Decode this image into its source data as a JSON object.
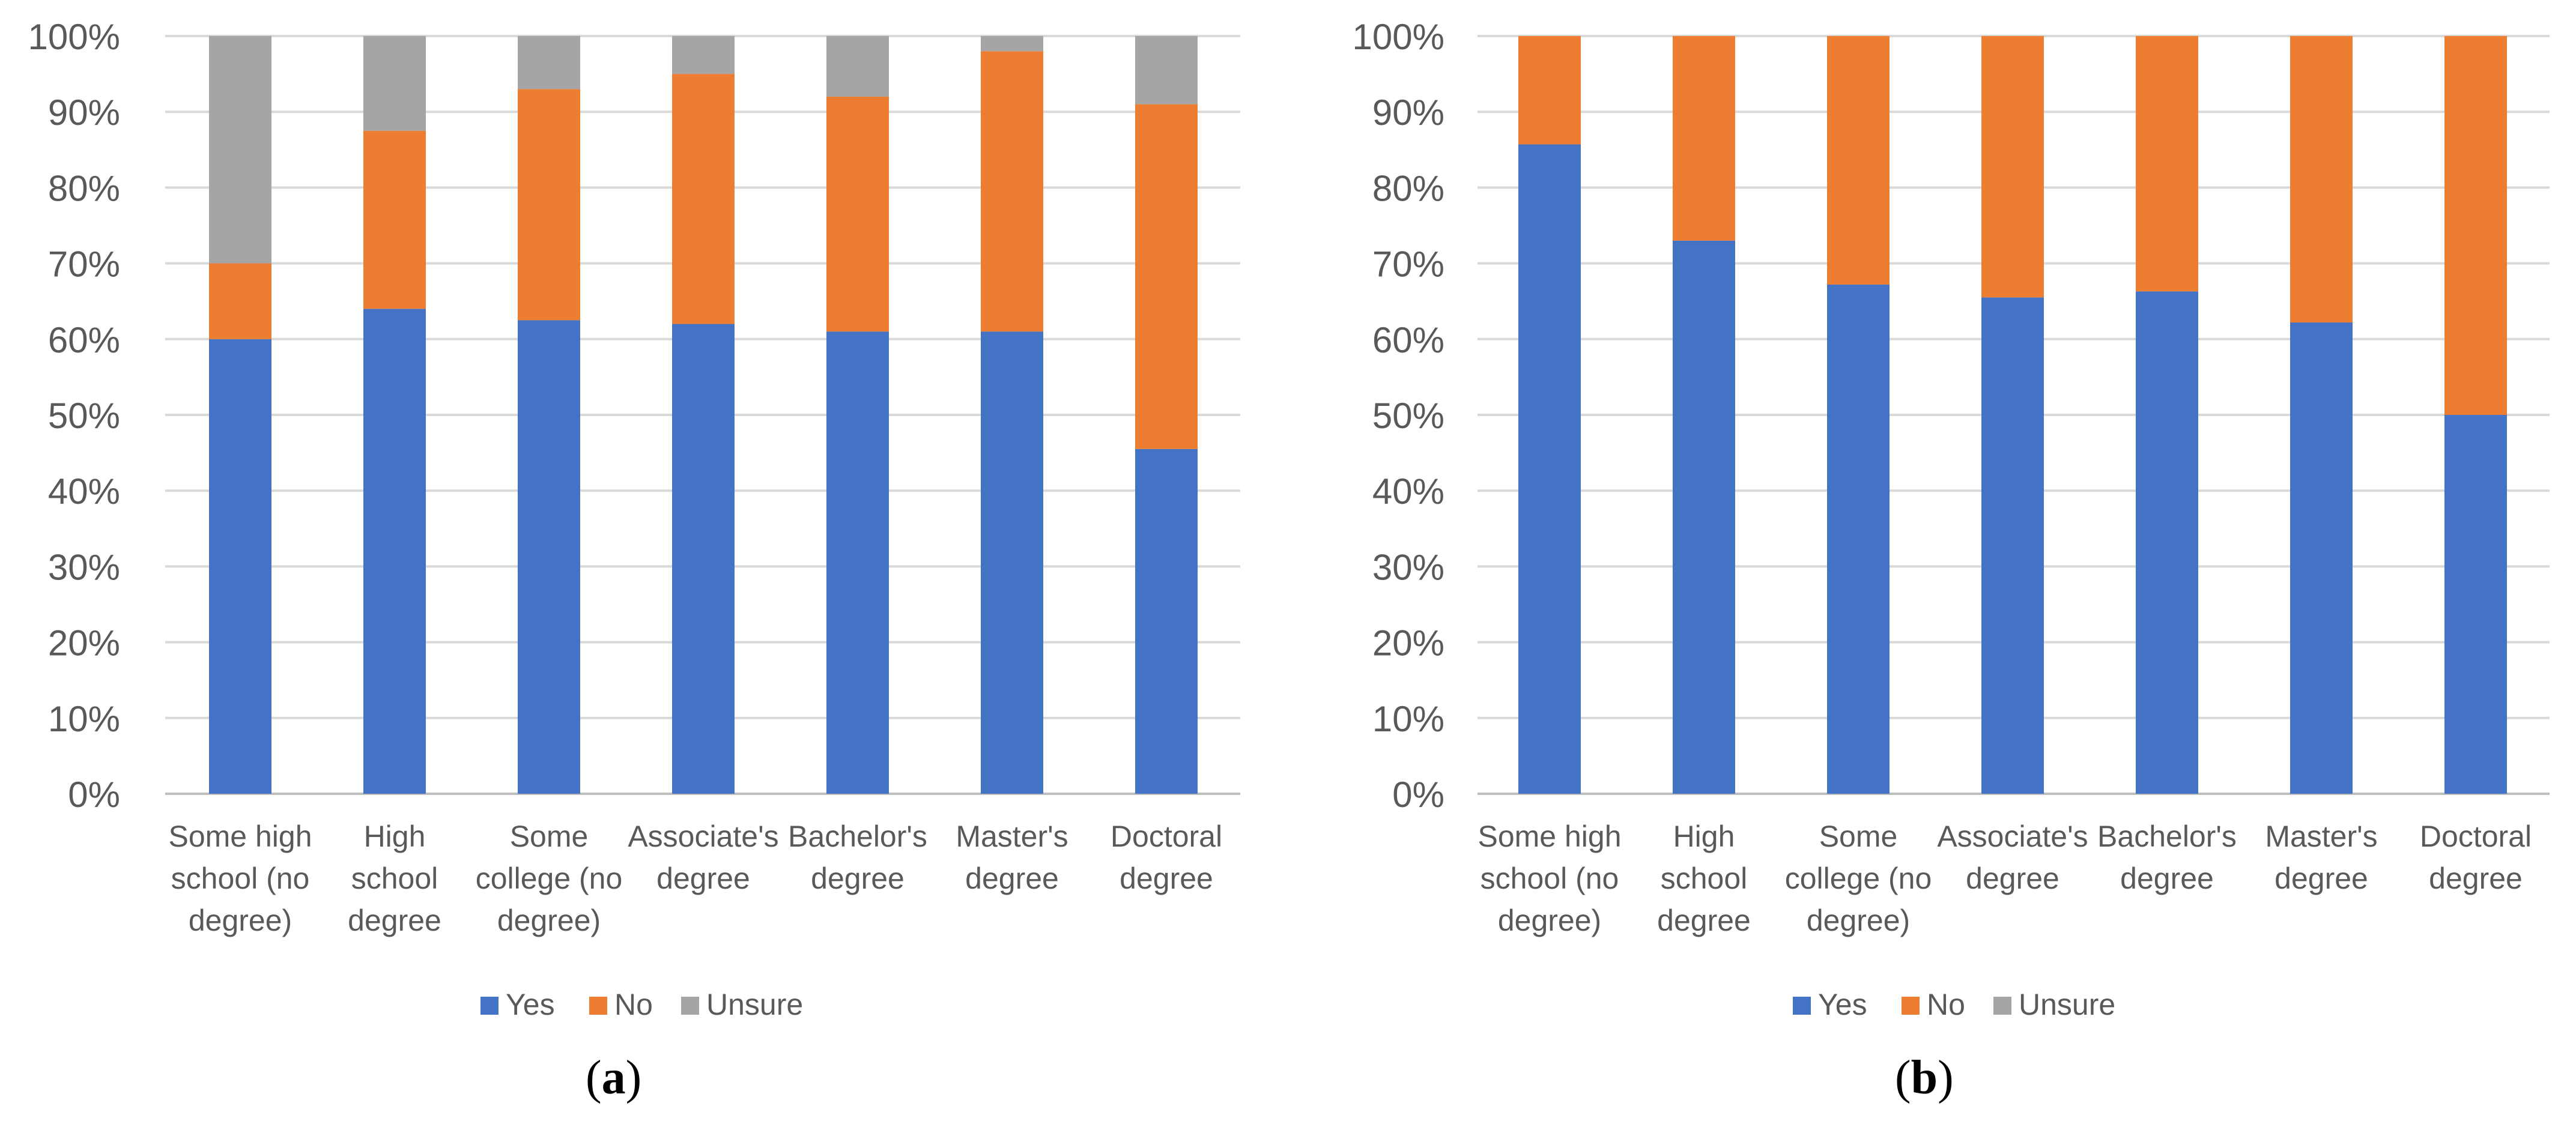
{
  "chart_data": [
    {
      "type": "bar",
      "stacked": true,
      "panel_label": "a",
      "categories": [
        "Some high school (no degree)",
        "High school degree",
        "Some college (no degree)",
        "Associate's degree",
        "Bachelor's degree",
        "Master's degree",
        "Doctoral degree"
      ],
      "category_lines": [
        [
          "Some high",
          "school (no",
          "degree)"
        ],
        [
          "High",
          "school",
          "degree"
        ],
        [
          "Some",
          "college (no",
          "degree)"
        ],
        [
          "Associate's",
          "degree"
        ],
        [
          "Bachelor's",
          "degree"
        ],
        [
          "Master's",
          "degree"
        ],
        [
          "Doctoral",
          "degree"
        ]
      ],
      "series": [
        {
          "name": "Yes",
          "color": "#4472C4",
          "values": [
            60,
            64,
            62.5,
            62,
            61,
            61,
            45.5
          ]
        },
        {
          "name": "No",
          "color": "#ED7D31",
          "values": [
            10,
            23.5,
            30.5,
            33,
            31,
            37,
            45.5
          ]
        },
        {
          "name": "Unsure",
          "color": "#A5A5A5",
          "values": [
            30,
            12.5,
            7,
            5,
            8,
            2,
            9
          ]
        }
      ],
      "ylim": [
        0,
        100
      ],
      "yticks": [
        "0%",
        "10%",
        "20%",
        "30%",
        "40%",
        "50%",
        "60%",
        "70%",
        "80%",
        "90%",
        "100%"
      ],
      "legend": "bottom",
      "grid": true
    },
    {
      "type": "bar",
      "stacked": true,
      "panel_label": "b",
      "categories": [
        "Some high school (no degree)",
        "High school degree",
        "Some college (no degree)",
        "Associate's degree",
        "Bachelor's degree",
        "Master's degree",
        "Doctoral degree"
      ],
      "category_lines": [
        [
          "Some high",
          "school (no",
          "degree)"
        ],
        [
          "High",
          "school",
          "degree"
        ],
        [
          "Some",
          "college (no",
          "degree)"
        ],
        [
          "Associate's",
          "degree"
        ],
        [
          "Bachelor's",
          "degree"
        ],
        [
          "Master's",
          "degree"
        ],
        [
          "Doctoral",
          "degree"
        ]
      ],
      "series": [
        {
          "name": "Yes",
          "color": "#4472C4",
          "values": [
            85.7,
            73,
            67.2,
            65.5,
            66.3,
            62.2,
            50
          ]
        },
        {
          "name": "No",
          "color": "#ED7D31",
          "values": [
            14.3,
            27,
            32.8,
            34.5,
            33.7,
            37.8,
            50
          ]
        },
        {
          "name": "Unsure",
          "color": "#A5A5A5",
          "values": [
            0,
            0,
            0,
            0,
            0,
            0,
            0
          ]
        }
      ],
      "ylim": [
        0,
        100
      ],
      "yticks": [
        "0%",
        "10%",
        "20%",
        "30%",
        "40%",
        "50%",
        "60%",
        "70%",
        "80%",
        "90%",
        "100%"
      ],
      "legend": "bottom",
      "grid": true
    }
  ]
}
